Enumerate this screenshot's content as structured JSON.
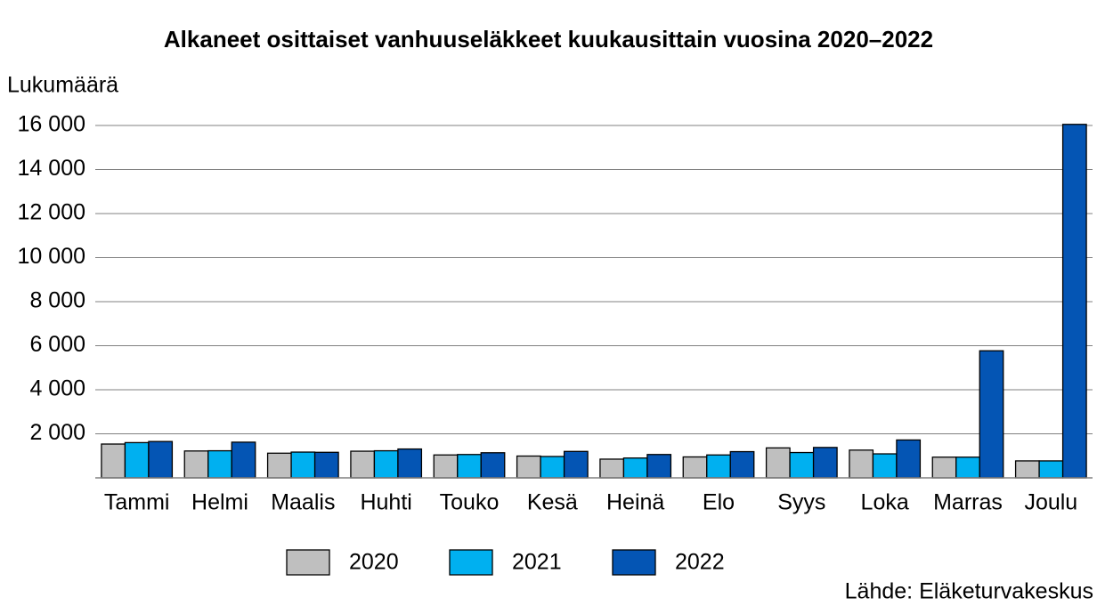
{
  "chart_data": {
    "type": "bar",
    "title": "Alkaneet osittaiset vanhuuseläkkeet kuukausittain vuosina 2020–2022",
    "y_label": "Lukumäärä",
    "source": "Lähde: Eläketurvakeskus",
    "categories": [
      "Tammi",
      "Helmi",
      "Maalis",
      "Huhti",
      "Touko",
      "Kesä",
      "Heinä",
      "Elo",
      "Syys",
      "Loka",
      "Marras",
      "Joulu"
    ],
    "series": [
      {
        "name": "2020",
        "color": "#bfbfbf",
        "values": [
          1535,
          1220,
          1120,
          1210,
          1040,
          990,
          850,
          950,
          1360,
          1260,
          940,
          770
        ]
      },
      {
        "name": "2021",
        "color": "#00b0f0",
        "values": [
          1600,
          1230,
          1170,
          1230,
          1060,
          970,
          900,
          1040,
          1150,
          1090,
          940,
          770
        ]
      },
      {
        "name": "2022",
        "color": "#0455b4",
        "values": [
          1650,
          1620,
          1160,
          1310,
          1140,
          1200,
          1060,
          1190,
          1380,
          1720,
          5770,
          16050
        ]
      }
    ],
    "ylim": [
      0,
      16000
    ],
    "yticks": [
      {
        "value": 2000,
        "label": "2 000"
      },
      {
        "value": 4000,
        "label": "4 000"
      },
      {
        "value": 6000,
        "label": "6 000"
      },
      {
        "value": 8000,
        "label": "8 000"
      },
      {
        "value": 10000,
        "label": "10 000"
      },
      {
        "value": 12000,
        "label": "12 000"
      },
      {
        "value": 14000,
        "label": "14 000"
      },
      {
        "value": 16000,
        "label": "16 000"
      }
    ],
    "grid": true
  }
}
